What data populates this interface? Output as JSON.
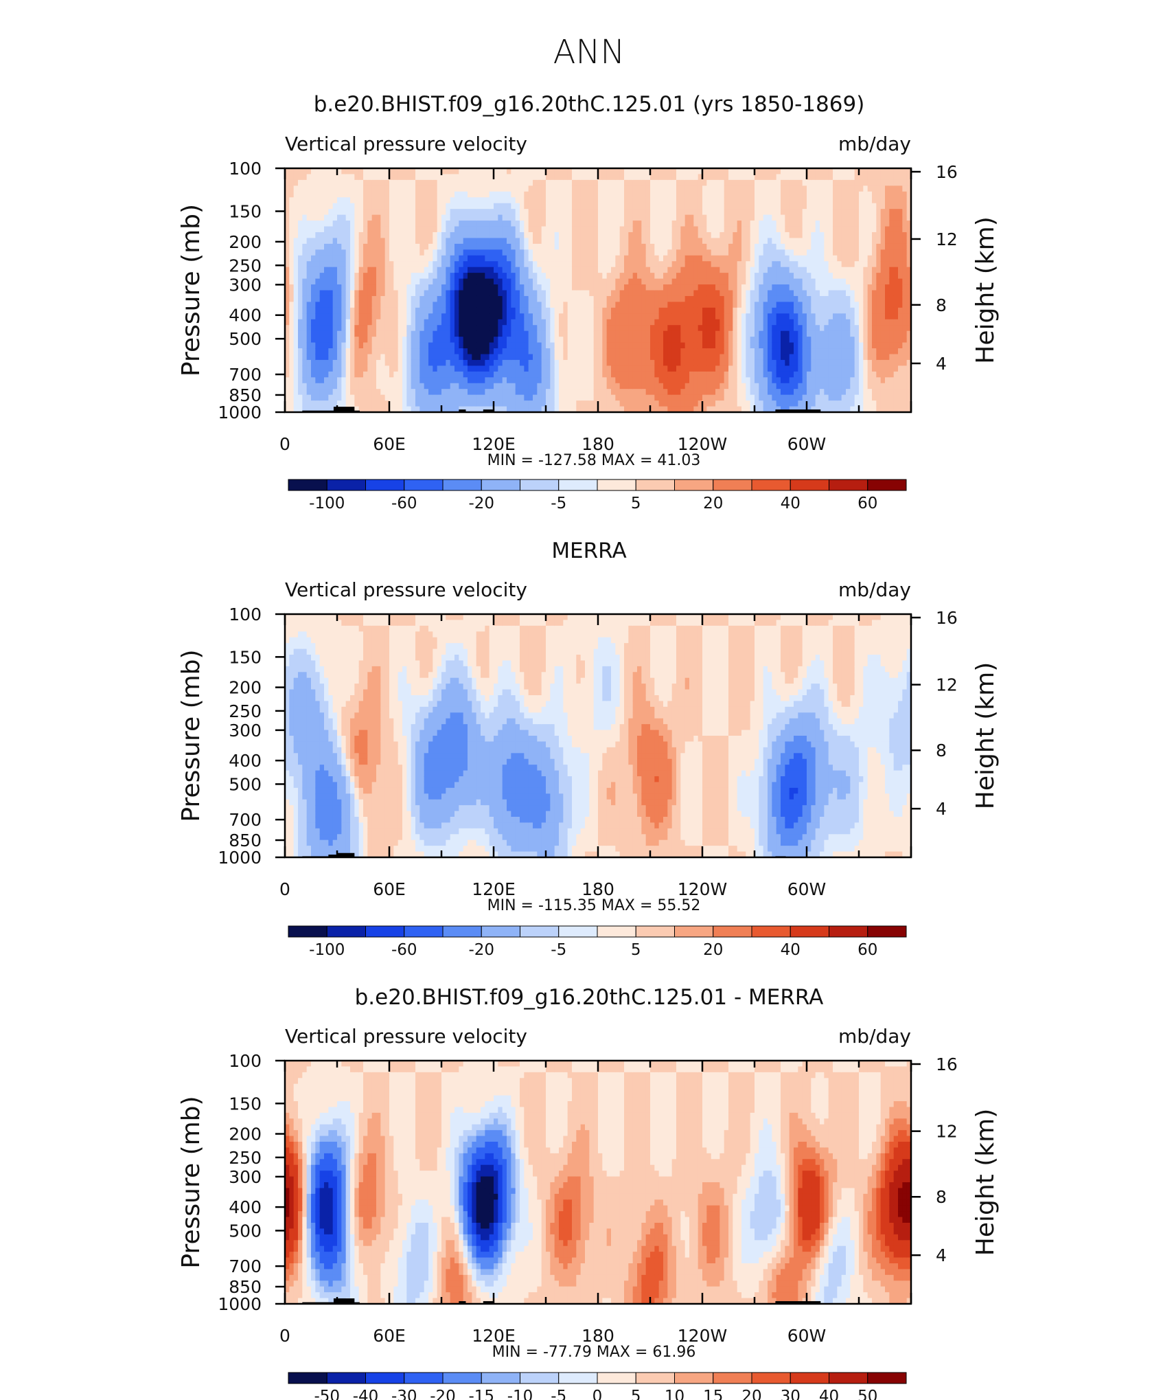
{
  "figure": {
    "title": "ANN"
  },
  "colors": {
    "cool": [
      "#08104e",
      "#0a22a8",
      "#1742e6",
      "#2f62f3",
      "#5b8cf5",
      "#8fb3f7",
      "#bcd2fa",
      "#deebfd"
    ],
    "warm": [
      "#fde9db",
      "#fbcbb2",
      "#f7a682",
      "#f07f55",
      "#e85a30",
      "#d63a1b",
      "#b61e10",
      "#870303"
    ]
  },
  "chart_data": [
    {
      "type": "heatmap",
      "title": "b.e20.BHIST.f09_g16.20thC.125.01 (yrs 1850-1869)",
      "variable": "Vertical pressure velocity",
      "units": "mb/day",
      "ylabel": "Pressure (mb)",
      "ylabel_right": "Height (km)",
      "x_ticks": [
        "0",
        "60E",
        "120E",
        "180",
        "120W",
        "60W"
      ],
      "y_ticks": [
        "100",
        "150",
        "200",
        "250",
        "300",
        "400",
        "500",
        "700",
        "850",
        "1000"
      ],
      "y_ticks_right": [
        "16",
        "12",
        "8",
        "4"
      ],
      "min_max_text": "MIN = -127.58   MAX =   41.03",
      "min": -127.58,
      "max": 41.03,
      "colorbar_labels": [
        "-100",
        "-60",
        "-20",
        "-5",
        "5",
        "20",
        "40",
        "60"
      ],
      "scale": 1,
      "features": [
        {
          "lon": 20,
          "p": 500,
          "v": -55
        },
        {
          "lon": 28,
          "p": 320,
          "v": -40
        },
        {
          "lon": 42,
          "p": 380,
          "v": 22
        },
        {
          "lon": 105,
          "p": 380,
          "v": -95
        },
        {
          "lon": 112,
          "p": 420,
          "v": -90
        },
        {
          "lon": 125,
          "p": 350,
          "v": -75
        },
        {
          "lon": 85,
          "p": 600,
          "v": -55
        },
        {
          "lon": 140,
          "p": 650,
          "v": -50
        },
        {
          "lon": 200,
          "p": 500,
          "v": 22
        },
        {
          "lon": 225,
          "p": 550,
          "v": 32
        },
        {
          "lon": 245,
          "p": 420,
          "v": 28
        },
        {
          "lon": 283,
          "p": 500,
          "v": -65
        },
        {
          "lon": 292,
          "p": 600,
          "v": -55
        },
        {
          "lon": 318,
          "p": 600,
          "v": -30
        },
        {
          "lon": 350,
          "p": 380,
          "v": 24
        },
        {
          "lon": 350,
          "p": 150,
          "v": 5
        }
      ],
      "topography": [
        [
          10,
          30,
          985
        ],
        [
          28,
          40,
          950
        ],
        [
          38,
          43,
          985
        ],
        [
          100,
          104,
          975
        ],
        [
          114,
          120,
          975
        ],
        [
          282,
          308,
          975
        ]
      ]
    },
    {
      "type": "heatmap",
      "title": "MERRA",
      "variable": "Vertical pressure velocity",
      "units": "mb/day",
      "ylabel": "Pressure (mb)",
      "ylabel_right": "Height (km)",
      "x_ticks": [
        "0",
        "60E",
        "120E",
        "180",
        "120W",
        "60W"
      ],
      "y_ticks": [
        "100",
        "150",
        "200",
        "250",
        "300",
        "400",
        "500",
        "700",
        "850",
        "1000"
      ],
      "y_ticks_right": [
        "16",
        "12",
        "8",
        "4"
      ],
      "min_max_text": "MIN = -115.35   MAX =   55.52",
      "min": -115.35,
      "max": 55.52,
      "colorbar_labels": [
        "-100",
        "-60",
        "-20",
        "-5",
        "5",
        "20",
        "40",
        "60"
      ],
      "scale": 1,
      "features": [
        {
          "lon": 14,
          "p": 280,
          "v": -30
        },
        {
          "lon": 20,
          "p": 700,
          "v": -25
        },
        {
          "lon": 32,
          "p": 600,
          "v": -45
        },
        {
          "lon": 36,
          "p": 400,
          "v": 18
        },
        {
          "lon": 46,
          "p": 500,
          "v": 12
        },
        {
          "lon": 85,
          "p": 450,
          "v": -38
        },
        {
          "lon": 100,
          "p": 350,
          "v": -45
        },
        {
          "lon": 130,
          "p": 500,
          "v": -50
        },
        {
          "lon": 150,
          "p": 600,
          "v": -40
        },
        {
          "lon": 210,
          "p": 450,
          "v": 18
        },
        {
          "lon": 180,
          "p": 200,
          "v": -8
        },
        {
          "lon": 288,
          "p": 600,
          "v": -55
        },
        {
          "lon": 300,
          "p": 450,
          "v": -45
        },
        {
          "lon": 325,
          "p": 500,
          "v": -15
        },
        {
          "lon": 352,
          "p": 250,
          "v": -12
        }
      ],
      "topography": [
        [
          10,
          25,
          990
        ],
        [
          25,
          30,
          975
        ],
        [
          30,
          40,
          960
        ],
        [
          282,
          288,
          990
        ]
      ]
    },
    {
      "type": "heatmap",
      "title": "b.e20.BHIST.f09_g16.20thC.125.01 - MERRA",
      "variable": "Vertical pressure velocity",
      "units": "mb/day",
      "ylabel": "Pressure (mb)",
      "ylabel_right": "Height (km)",
      "x_ticks": [
        "0",
        "60E",
        "120E",
        "180",
        "120W",
        "60W"
      ],
      "y_ticks": [
        "100",
        "150",
        "200",
        "250",
        "300",
        "400",
        "500",
        "700",
        "850",
        "1000"
      ],
      "y_ticks_right": [
        "16",
        "12",
        "8",
        "4"
      ],
      "min_max_text": "MIN = -77.79   MAX =   61.96",
      "min": -77.79,
      "max": 61.96,
      "colorbar_labels": [
        "-50",
        "-40",
        "-30",
        "-20",
        "-15",
        "-10",
        "-5",
        "0",
        "5",
        "10",
        "15",
        "20",
        "30",
        "40",
        "50"
      ],
      "scale": 0.8,
      "features": [
        {
          "lon": 5,
          "p": 350,
          "v": 38
        },
        {
          "lon": 20,
          "p": 400,
          "v": -42
        },
        {
          "lon": 26,
          "p": 320,
          "v": -30
        },
        {
          "lon": 32,
          "p": 600,
          "v": -25
        },
        {
          "lon": 45,
          "p": 400,
          "v": 25
        },
        {
          "lon": 75,
          "p": 700,
          "v": -18
        },
        {
          "lon": 112,
          "p": 400,
          "v": -55
        },
        {
          "lon": 120,
          "p": 350,
          "v": -45
        },
        {
          "lon": 100,
          "p": 800,
          "v": 20
        },
        {
          "lon": 165,
          "p": 450,
          "v": 20
        },
        {
          "lon": 210,
          "p": 800,
          "v": 22
        },
        {
          "lon": 245,
          "p": 500,
          "v": 12
        },
        {
          "lon": 280,
          "p": 500,
          "v": -35
        },
        {
          "lon": 285,
          "p": 750,
          "v": 30
        },
        {
          "lon": 302,
          "p": 400,
          "v": 38
        },
        {
          "lon": 312,
          "p": 700,
          "v": -20
        },
        {
          "lon": 352,
          "p": 420,
          "v": 40
        }
      ],
      "topography": [
        [
          10,
          28,
          985
        ],
        [
          28,
          40,
          950
        ],
        [
          38,
          43,
          985
        ],
        [
          100,
          104,
          975
        ],
        [
          114,
          120,
          975
        ],
        [
          282,
          308,
          975
        ]
      ]
    }
  ]
}
